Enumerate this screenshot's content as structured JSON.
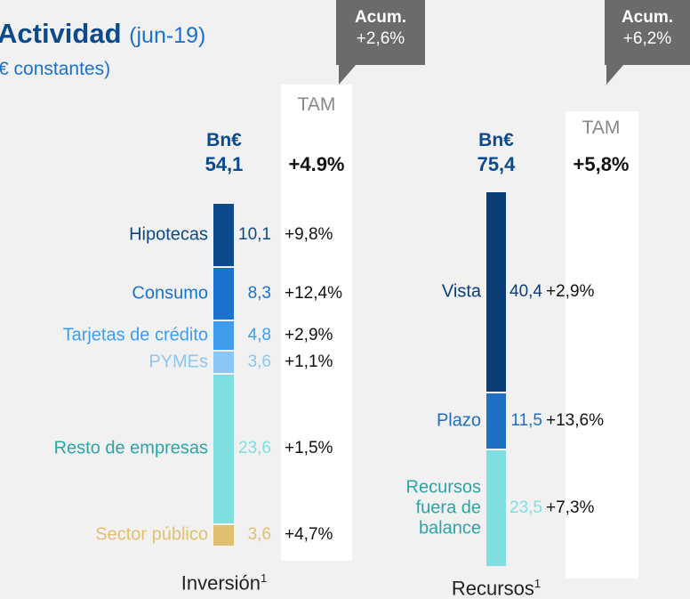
{
  "header": {
    "title": "Actividad",
    "title_note": "(jun-19)",
    "subtitle": "€ constantes)"
  },
  "chart_data": [
    {
      "type": "stacked_bar",
      "unit": "Bn€",
      "total": 54.1,
      "total_label": "54,1",
      "tam_header": "TAM",
      "tam_total": "+4.9%",
      "callout": {
        "title": "Acum.",
        "value": "+2,6%"
      },
      "xlabel": "Inversión",
      "xlabel_note": "1",
      "series": [
        {
          "name": "Hipotecas",
          "color": "#0d4a8c",
          "values": [
            10.1
          ],
          "value_labels": [
            "10,1"
          ],
          "tam": "+9,8%"
        },
        {
          "name": "Consumo",
          "color": "#1a72cf",
          "values": [
            8.3
          ],
          "value_labels": [
            "8,3"
          ],
          "tam": "+12,4%"
        },
        {
          "name": "Tarjetas de crédito",
          "color": "#3f9cee",
          "values": [
            4.8
          ],
          "value_labels": [
            "4,8"
          ],
          "tam": "+2,9%"
        },
        {
          "name": "PYMEs",
          "color": "#8cc6f4",
          "values": [
            3.6
          ],
          "value_labels": [
            "3,6"
          ],
          "tam": "+1,1%"
        },
        {
          "name": "Resto de empresas",
          "color": "#7fdfe0",
          "values": [
            23.6
          ],
          "value_labels": [
            "23,6"
          ],
          "tam": "+1,5%"
        },
        {
          "name": "Sector público",
          "color": "#e0c070",
          "values": [
            3.6
          ],
          "value_labels": [
            "3,6"
          ],
          "tam": "+4,7%"
        }
      ]
    },
    {
      "type": "stacked_bar",
      "unit": "Bn€",
      "total": 75.4,
      "total_label": "75,4",
      "tam_header": "TAM",
      "tam_total": "+5,8%",
      "callout": {
        "title": "Acum.",
        "value": "+6,2%"
      },
      "xlabel": "Recursos",
      "xlabel_note": "1",
      "series": [
        {
          "name": "Vista",
          "color": "#0b3d78",
          "values": [
            40.4
          ],
          "value_labels": [
            "40,4"
          ],
          "tam": "+2,9%"
        },
        {
          "name": "Plazo",
          "color": "#1f6fc4",
          "values": [
            11.5
          ],
          "value_labels": [
            "11,5"
          ],
          "tam": "+13,6%"
        },
        {
          "name": "Recursos fuera de balance",
          "color": "#7fdfe0",
          "values": [
            23.5
          ],
          "value_labels": [
            "23,5"
          ],
          "tam": "+7,3%"
        }
      ]
    }
  ]
}
